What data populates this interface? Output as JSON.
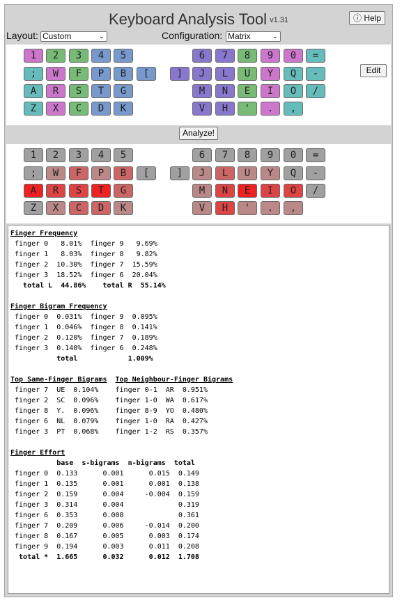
{
  "app": {
    "title": "Keyboard Analysis Tool",
    "version": "v1.31",
    "help_label": "ⓘ Help"
  },
  "controls": {
    "layout_label": "Layout:",
    "layout_value": "Custom",
    "config_label": "Configuration:",
    "config_value": "Matrix",
    "edit_label": "Edit",
    "analyze_label": "Analyze!"
  },
  "colors": {
    "pink": "#cc77cc",
    "green": "#77bb77",
    "blue": "#7799cc",
    "purple": "#8877cc",
    "teal": "#66bbbb",
    "grey": "#a0a0a0",
    "red_strong": "#ee2222",
    "red_mid": "#dd4444",
    "red_soft": "#cc6666",
    "red_pale": "#bb8888"
  },
  "layout_keys": [
    [
      [
        "1",
        "pink"
      ],
      [
        "2",
        "green"
      ],
      [
        "3",
        "green"
      ],
      [
        "4",
        "blue"
      ],
      [
        "5",
        "blue"
      ],
      null,
      null,
      [
        "6",
        "purple"
      ],
      [
        "7",
        "purple"
      ],
      [
        "8",
        "green"
      ],
      [
        "9",
        "pink"
      ],
      [
        "0",
        "pink"
      ],
      [
        "=",
        "teal"
      ]
    ],
    [
      [
        ";",
        "teal"
      ],
      [
        "W",
        "pink"
      ],
      [
        "F",
        "green"
      ],
      [
        "P",
        "blue"
      ],
      [
        "B",
        "blue"
      ],
      [
        "[",
        "blue"
      ],
      [
        "]",
        "purple"
      ],
      [
        "J",
        "purple"
      ],
      [
        "L",
        "purple"
      ],
      [
        "U",
        "green"
      ],
      [
        "Y",
        "pink"
      ],
      [
        "Q",
        "teal"
      ],
      [
        "-",
        "teal"
      ]
    ],
    [
      [
        "A",
        "teal"
      ],
      [
        "R",
        "pink"
      ],
      [
        "S",
        "green"
      ],
      [
        "T",
        "blue"
      ],
      [
        "G",
        "blue"
      ],
      null,
      null,
      [
        "M",
        "purple"
      ],
      [
        "N",
        "purple"
      ],
      [
        "E",
        "green"
      ],
      [
        "I",
        "pink"
      ],
      [
        "O",
        "teal"
      ],
      [
        "/",
        "teal"
      ]
    ],
    [
      [
        "Z",
        "teal"
      ],
      [
        "X",
        "pink"
      ],
      [
        "C",
        "green"
      ],
      [
        "D",
        "blue"
      ],
      [
        "K",
        "blue"
      ],
      null,
      null,
      [
        "V",
        "purple"
      ],
      [
        "H",
        "purple"
      ],
      [
        "'",
        "green"
      ],
      [
        ".",
        "pink"
      ],
      [
        ",",
        "teal"
      ],
      null
    ]
  ],
  "heat_keys": [
    [
      [
        "1",
        "grey"
      ],
      [
        "2",
        "grey"
      ],
      [
        "3",
        "grey"
      ],
      [
        "4",
        "grey"
      ],
      [
        "5",
        "grey"
      ],
      null,
      null,
      [
        "6",
        "grey"
      ],
      [
        "7",
        "grey"
      ],
      [
        "8",
        "grey"
      ],
      [
        "9",
        "grey"
      ],
      [
        "0",
        "grey"
      ],
      [
        "=",
        "grey"
      ]
    ],
    [
      [
        ";",
        "grey"
      ],
      [
        "W",
        "red_pale"
      ],
      [
        "F",
        "red_soft"
      ],
      [
        "P",
        "red_pale"
      ],
      [
        "B",
        "red_soft"
      ],
      [
        "[",
        "grey"
      ],
      [
        "]",
        "grey"
      ],
      [
        "J",
        "red_pale"
      ],
      [
        "L",
        "red_soft"
      ],
      [
        "U",
        "red_pale"
      ],
      [
        "Y",
        "red_pale"
      ],
      [
        "Q",
        "grey"
      ],
      [
        "-",
        "grey"
      ]
    ],
    [
      [
        "A",
        "red_strong"
      ],
      [
        "R",
        "red_mid"
      ],
      [
        "S",
        "red_mid"
      ],
      [
        "T",
        "red_strong"
      ],
      [
        "G",
        "red_soft"
      ],
      null,
      null,
      [
        "M",
        "red_pale"
      ],
      [
        "N",
        "red_mid"
      ],
      [
        "E",
        "red_strong"
      ],
      [
        "I",
        "red_mid"
      ],
      [
        "O",
        "red_mid"
      ],
      [
        "/",
        "grey"
      ]
    ],
    [
      [
        "Z",
        "grey"
      ],
      [
        "X",
        "red_pale"
      ],
      [
        "C",
        "red_soft"
      ],
      [
        "D",
        "red_soft"
      ],
      [
        "K",
        "red_pale"
      ],
      null,
      null,
      [
        "V",
        "red_pale"
      ],
      [
        "H",
        "red_mid"
      ],
      [
        "'",
        "red_pale"
      ],
      [
        ".",
        "red_pale"
      ],
      [
        ",",
        "red_pale"
      ],
      null
    ]
  ],
  "report": {
    "freq_title": "Finger Frequency",
    "freq_lines": [
      " finger 0   8.01%  finger 9   9.69%",
      " finger 1   8.03%  finger 8   9.82%",
      " finger 2  10.30%  finger 7  15.59%",
      " finger 3  18.52%  finger 6  20.04%"
    ],
    "freq_total": "   total L  44.86%    total R  55.14%",
    "bigram_title": "Finger Bigram Frequency",
    "bigram_lines": [
      " finger 0  0.031%  finger 9  0.095%",
      " finger 1  0.046%  finger 8  0.141%",
      " finger 2  0.120%  finger 7  0.189%",
      " finger 3  0.140%  finger 6  0.248%"
    ],
    "bigram_total": "           total            1.009%",
    "same_title": "Top Same-Finger Bigrams",
    "neigh_title": "Top Neighbour-Finger Bigrams",
    "same_lines": [
      " finger 7  UE  0.104%    finger 0-1  AR  0.951%",
      " finger 2  SC  0.096%    finger 1-0  WA  0.617%",
      " finger 8  Y.  0.096%    finger 8-9  YO  0.480%",
      " finger 6  NL  0.079%    finger 1-0  RA  0.427%",
      " finger 3  PT  0.068%    finger 1-2  RS  0.357%"
    ],
    "effort_title": "Finger Effort",
    "effort_header": "           base  s-bigrams  n-bigrams  total",
    "effort_lines": [
      " finger 0  0.133      0.001      0.015  0.149",
      " finger 1  0.135      0.001      0.001  0.138",
      " finger 2  0.159      0.004     -0.004  0.159",
      " finger 3  0.314      0.004             0.319",
      " finger 6  0.353      0.008             0.361",
      " finger 7  0.209      0.006     -0.014  0.200",
      " finger 8  0.167      0.005      0.003  0.174",
      " finger 9  0.194      0.003      0.011  0.208"
    ],
    "effort_total": "  total *  1.665      0.032      0.012  1.708"
  }
}
